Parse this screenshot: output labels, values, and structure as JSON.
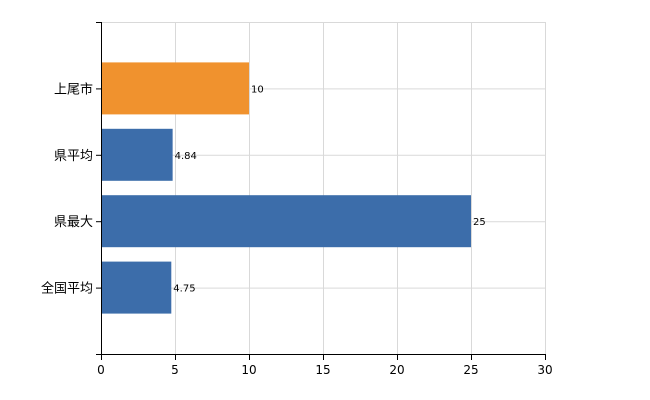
{
  "chart_data": {
    "type": "bar",
    "orientation": "horizontal",
    "categories": [
      "上尾市",
      "県平均",
      "県最大",
      "全国平均"
    ],
    "series": [
      {
        "values": [
          10,
          4.84,
          25,
          4.75
        ]
      }
    ],
    "data_labels": [
      "10",
      "4.84",
      "25",
      "4.75"
    ],
    "bar_colors": [
      "#F0922E",
      "#3C6DAA",
      "#3C6DAA",
      "#3C6DAA"
    ],
    "xlim": [
      0,
      30
    ],
    "xticks": [
      0,
      5,
      10,
      15,
      20,
      25,
      30
    ],
    "grid": true,
    "legend": "none",
    "title": "",
    "xlabel": "",
    "ylabel": ""
  }
}
